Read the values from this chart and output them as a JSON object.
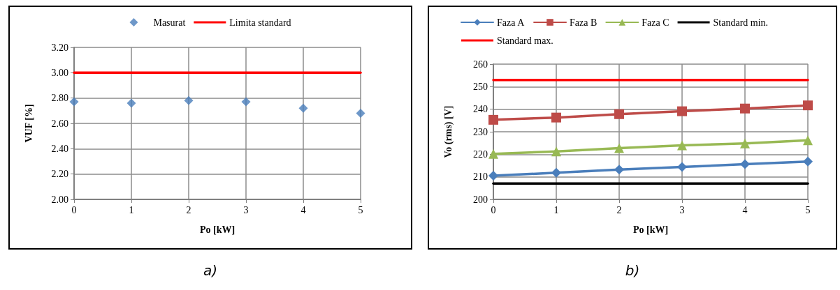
{
  "chart_data": [
    {
      "type": "line",
      "xlabel": "Po [kW]",
      "ylabel": "VUF [%]",
      "categories": [
        "0",
        "1",
        "2",
        "3",
        "4",
        "5"
      ],
      "series": [
        {
          "name": "Masurat",
          "type": "scatter",
          "color": "#4a7ebb",
          "marker": "diamond",
          "values": [
            2.77,
            2.76,
            2.78,
            2.77,
            2.72,
            2.68
          ]
        },
        {
          "name": "Limita standard",
          "type": "line",
          "color": "#ff0000",
          "marker": "none",
          "values": [
            3.0,
            3.0,
            3.0,
            3.0,
            3.0,
            3.0
          ]
        }
      ],
      "ylim": [
        2.0,
        3.2
      ],
      "yticks": [
        {
          "value": 2.0,
          "label": "2.00"
        },
        {
          "value": 2.2,
          "label": "2.20"
        },
        {
          "value": 2.4,
          "label": "2.40"
        },
        {
          "value": 2.6,
          "label": "2.60"
        },
        {
          "value": 2.8,
          "label": "2.80"
        },
        {
          "value": 3.0,
          "label": "3.00"
        },
        {
          "value": 3.2,
          "label": "3.20"
        }
      ],
      "grid": true,
      "legend": "top",
      "line_style": "solid",
      "annotations": [
        "a)"
      ]
    },
    {
      "type": "line",
      "xlabel": "Po [kW]",
      "ylabel": "Vo (rms) [V]",
      "categories": [
        "0",
        "1",
        "2",
        "3",
        "4",
        "5"
      ],
      "series": [
        {
          "name": "Faza A",
          "color": "#4a7ebb",
          "marker": "diamond",
          "values": [
            210.5,
            211.8,
            213.2,
            214.4,
            215.6,
            216.8
          ]
        },
        {
          "name": "Faza B",
          "color": "#be4b48",
          "marker": "square",
          "values": [
            235.3,
            236.3,
            237.8,
            239.1,
            240.3,
            241.7
          ]
        },
        {
          "name": "Faza C",
          "color": "#98b954",
          "marker": "triangle",
          "values": [
            220.2,
            221.3,
            222.7,
            224.0,
            224.8,
            226.2
          ]
        },
        {
          "name": "Standard min.",
          "color": "#000000",
          "marker": "none",
          "values": [
            207,
            207,
            207,
            207,
            207,
            207
          ]
        },
        {
          "name": "Standard max.",
          "color": "#ff0000",
          "marker": "none",
          "values": [
            253,
            253,
            253,
            253,
            253,
            253
          ]
        }
      ],
      "ylim": [
        200,
        260
      ],
      "yticks": [
        200,
        210,
        220,
        230,
        240,
        250,
        260
      ],
      "grid": true,
      "legend": "top",
      "line_style": "solid",
      "annotations": [
        "b)"
      ]
    }
  ]
}
